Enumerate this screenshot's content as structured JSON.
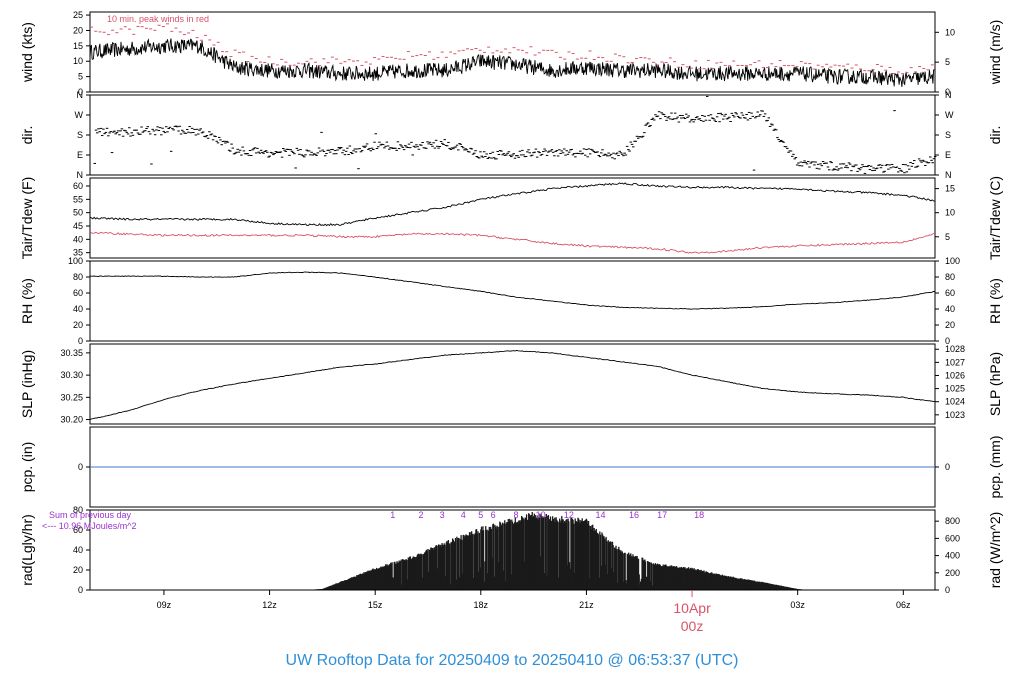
{
  "title": "UW Rooftop Data for 20250409  to  20250410 @ 06:53:37  (UTC)",
  "colors": {
    "title": "#2f8fd8",
    "accent_red": "#d9536b",
    "purple": "#9933cc",
    "pcp_line": "#4477cc",
    "line": "#000000"
  },
  "x_axis": {
    "range_hours": [
      6.9,
      30.9
    ],
    "ticks": [
      {
        "hour": 9,
        "label": "09z"
      },
      {
        "hour": 12,
        "label": "12z"
      },
      {
        "hour": 15,
        "label": "15z"
      },
      {
        "hour": 18,
        "label": "18z"
      },
      {
        "hour": 21,
        "label": "21z"
      },
      {
        "hour": 27,
        "label": "03z"
      },
      {
        "hour": 30,
        "label": "06z"
      }
    ],
    "day_marker": {
      "hour": 24,
      "date": "10Apr",
      "time": "00z"
    }
  },
  "annotations": {
    "wind_note": "10 min. peak winds in red",
    "rad_sum_title": "Sum of previous day",
    "rad_sum_value": "<--- 10.96 MJoules/m^2"
  },
  "chart_data": [
    {
      "type": "line",
      "id": "wind",
      "ylabel": "wind (kts)",
      "ylabel_right": "wind (m/s)",
      "ylim": [
        0,
        26
      ],
      "yticks": [
        0,
        5,
        10,
        15,
        20,
        25
      ],
      "right_ylim": [
        0,
        13.4
      ],
      "right_yticks": [
        0,
        5,
        10
      ],
      "x": [
        6.9,
        8,
        9,
        10,
        11,
        12,
        13,
        14,
        15,
        16,
        17,
        18,
        19,
        20,
        21,
        22,
        23,
        24,
        25,
        26,
        27,
        28,
        29,
        30,
        30.9
      ],
      "series": [
        {
          "name": "wind",
          "values": [
            13,
            14,
            15,
            15,
            8,
            7,
            7,
            6,
            6,
            7,
            7,
            10,
            9,
            7,
            8,
            7,
            7,
            6,
            6,
            6,
            6,
            5,
            5,
            4,
            5
          ]
        },
        {
          "name": "peak",
          "values": [
            20,
            20,
            21,
            18,
            12,
            10,
            10,
            10,
            10,
            12,
            12,
            14,
            14,
            12,
            12,
            11,
            10,
            9,
            9,
            9,
            9,
            8,
            8,
            7,
            8
          ]
        }
      ]
    },
    {
      "type": "scatter",
      "id": "dir",
      "ylabel": "dir.",
      "ylabel_right": "dir.",
      "yticks": [
        0,
        90,
        180,
        270,
        360
      ],
      "ytick_labels": [
        "N",
        "E",
        "S",
        "W",
        "N"
      ],
      "ylim": [
        0,
        360
      ],
      "x": [
        7,
        8,
        9,
        10,
        11,
        12,
        13,
        14,
        15,
        16,
        17,
        18,
        19,
        20,
        21,
        22,
        23,
        24,
        25,
        26,
        27,
        28,
        29,
        30,
        30.9
      ],
      "values": [
        190,
        195,
        200,
        200,
        110,
        100,
        100,
        105,
        130,
        130,
        140,
        90,
        95,
        100,
        100,
        90,
        270,
        250,
        260,
        270,
        50,
        40,
        30,
        30,
        80
      ]
    },
    {
      "type": "line",
      "id": "temp",
      "ylabel": "Tair/Tdew (F)",
      "ylabel_right": "Tair/Tdew (C)",
      "ylim": [
        33,
        63
      ],
      "yticks": [
        35,
        40,
        45,
        50,
        55,
        60
      ],
      "right_ylim": [
        0.6,
        17.2
      ],
      "right_yticks": [
        5,
        10,
        15
      ],
      "x": [
        6.9,
        8,
        9,
        10,
        11,
        12,
        13,
        14,
        15,
        16,
        17,
        18,
        19,
        20,
        21,
        22,
        23,
        24,
        25,
        26,
        27,
        28,
        29,
        30,
        30.9
      ],
      "series": [
        {
          "name": "Tair",
          "values": [
            48,
            47.5,
            47.5,
            47.5,
            47.5,
            46,
            45.5,
            45.5,
            48,
            50,
            52,
            55,
            57,
            59,
            60,
            61,
            60,
            59.5,
            59.5,
            59,
            59,
            58,
            57.5,
            56.5,
            54.5
          ]
        },
        {
          "name": "Tdew",
          "values": [
            42.5,
            42,
            41.5,
            41.5,
            41.5,
            41.5,
            41.5,
            41,
            41,
            42,
            42,
            41.5,
            40,
            38.5,
            37.5,
            37,
            36.5,
            35,
            35.5,
            37,
            37.5,
            38,
            38.5,
            39,
            42
          ]
        }
      ]
    },
    {
      "type": "line",
      "id": "rh",
      "ylabel": "RH (%)",
      "ylabel_right": "RH (%)",
      "ylim": [
        0,
        100
      ],
      "yticks": [
        0,
        20,
        40,
        60,
        80,
        100
      ],
      "x": [
        6.9,
        8,
        9,
        10,
        11,
        12,
        13,
        14,
        15,
        16,
        17,
        18,
        19,
        20,
        21,
        22,
        23,
        24,
        25,
        26,
        27,
        28,
        29,
        30,
        30.9
      ],
      "values": [
        81,
        81,
        81,
        80,
        80,
        85,
        86,
        85,
        80,
        74,
        68,
        62,
        55,
        50,
        45,
        42,
        41,
        40,
        41,
        43,
        46,
        48,
        51,
        55,
        62
      ]
    },
    {
      "type": "line",
      "id": "slp",
      "ylabel": "SLP (inHg)",
      "ylabel_right": "SLP (hPa)",
      "ylim": [
        30.19,
        30.37
      ],
      "yticks": [
        30.2,
        30.25,
        30.3,
        30.35
      ],
      "ytick_labels": [
        "30.20",
        "30.25",
        "30.30",
        "30.35"
      ],
      "right_ylim": [
        1022.3,
        1028.4
      ],
      "right_yticks": [
        1023,
        1024,
        1025,
        1026,
        1027,
        1028
      ],
      "x": [
        6.9,
        8,
        9,
        10,
        11,
        12,
        13,
        14,
        15,
        16,
        17,
        18,
        19,
        20,
        21,
        22,
        23,
        24,
        25,
        26,
        27,
        28,
        29,
        30,
        30.9
      ],
      "values": [
        30.2,
        30.22,
        30.245,
        30.265,
        30.28,
        30.293,
        30.305,
        30.318,
        30.325,
        30.335,
        30.345,
        30.35,
        30.355,
        30.35,
        30.34,
        30.33,
        30.32,
        30.3,
        30.285,
        30.27,
        30.262,
        30.258,
        30.255,
        30.25,
        30.24
      ]
    },
    {
      "type": "line",
      "id": "pcp",
      "ylabel": "pcp. (in)",
      "ylabel_right": "pcp. (mm)",
      "ylim": [
        -1,
        1
      ],
      "yticks": [
        0
      ],
      "right_yticks": [
        0
      ],
      "x": [
        6.9,
        30.9
      ],
      "values": [
        0,
        0
      ]
    },
    {
      "type": "area",
      "id": "rad",
      "ylabel": "rad(Lgly/hr)",
      "ylabel_right": "rad (W/m^2)",
      "ylim": [
        0,
        80
      ],
      "yticks": [
        0,
        20,
        40,
        60,
        80
      ],
      "right_ylim": [
        0,
        930
      ],
      "right_yticks": [
        0,
        200,
        400,
        600,
        800
      ],
      "x": [
        6.9,
        13,
        13.5,
        14,
        15,
        16,
        17,
        18,
        19,
        19.5,
        20,
        21,
        22,
        23,
        24,
        25,
        26,
        27,
        27.3,
        30.9
      ],
      "values": [
        0,
        0,
        1,
        8,
        22,
        33,
        48,
        62,
        72,
        77,
        74,
        70,
        40,
        26,
        22,
        14,
        8,
        1,
        0,
        0
      ],
      "hour_labels": [
        {
          "hour": 15.5,
          "label": "1"
        },
        {
          "hour": 16.3,
          "label": "2"
        },
        {
          "hour": 16.9,
          "label": "3"
        },
        {
          "hour": 17.5,
          "label": "4"
        },
        {
          "hour": 18.0,
          "label": "5"
        },
        {
          "hour": 18.35,
          "label": "6"
        },
        {
          "hour": 19.0,
          "label": "8"
        },
        {
          "hour": 19.7,
          "label": "10"
        },
        {
          "hour": 20.5,
          "label": "12"
        },
        {
          "hour": 21.4,
          "label": "14"
        },
        {
          "hour": 22.35,
          "label": "16"
        },
        {
          "hour": 23.15,
          "label": "17"
        },
        {
          "hour": 24.2,
          "label": "18"
        }
      ]
    }
  ]
}
